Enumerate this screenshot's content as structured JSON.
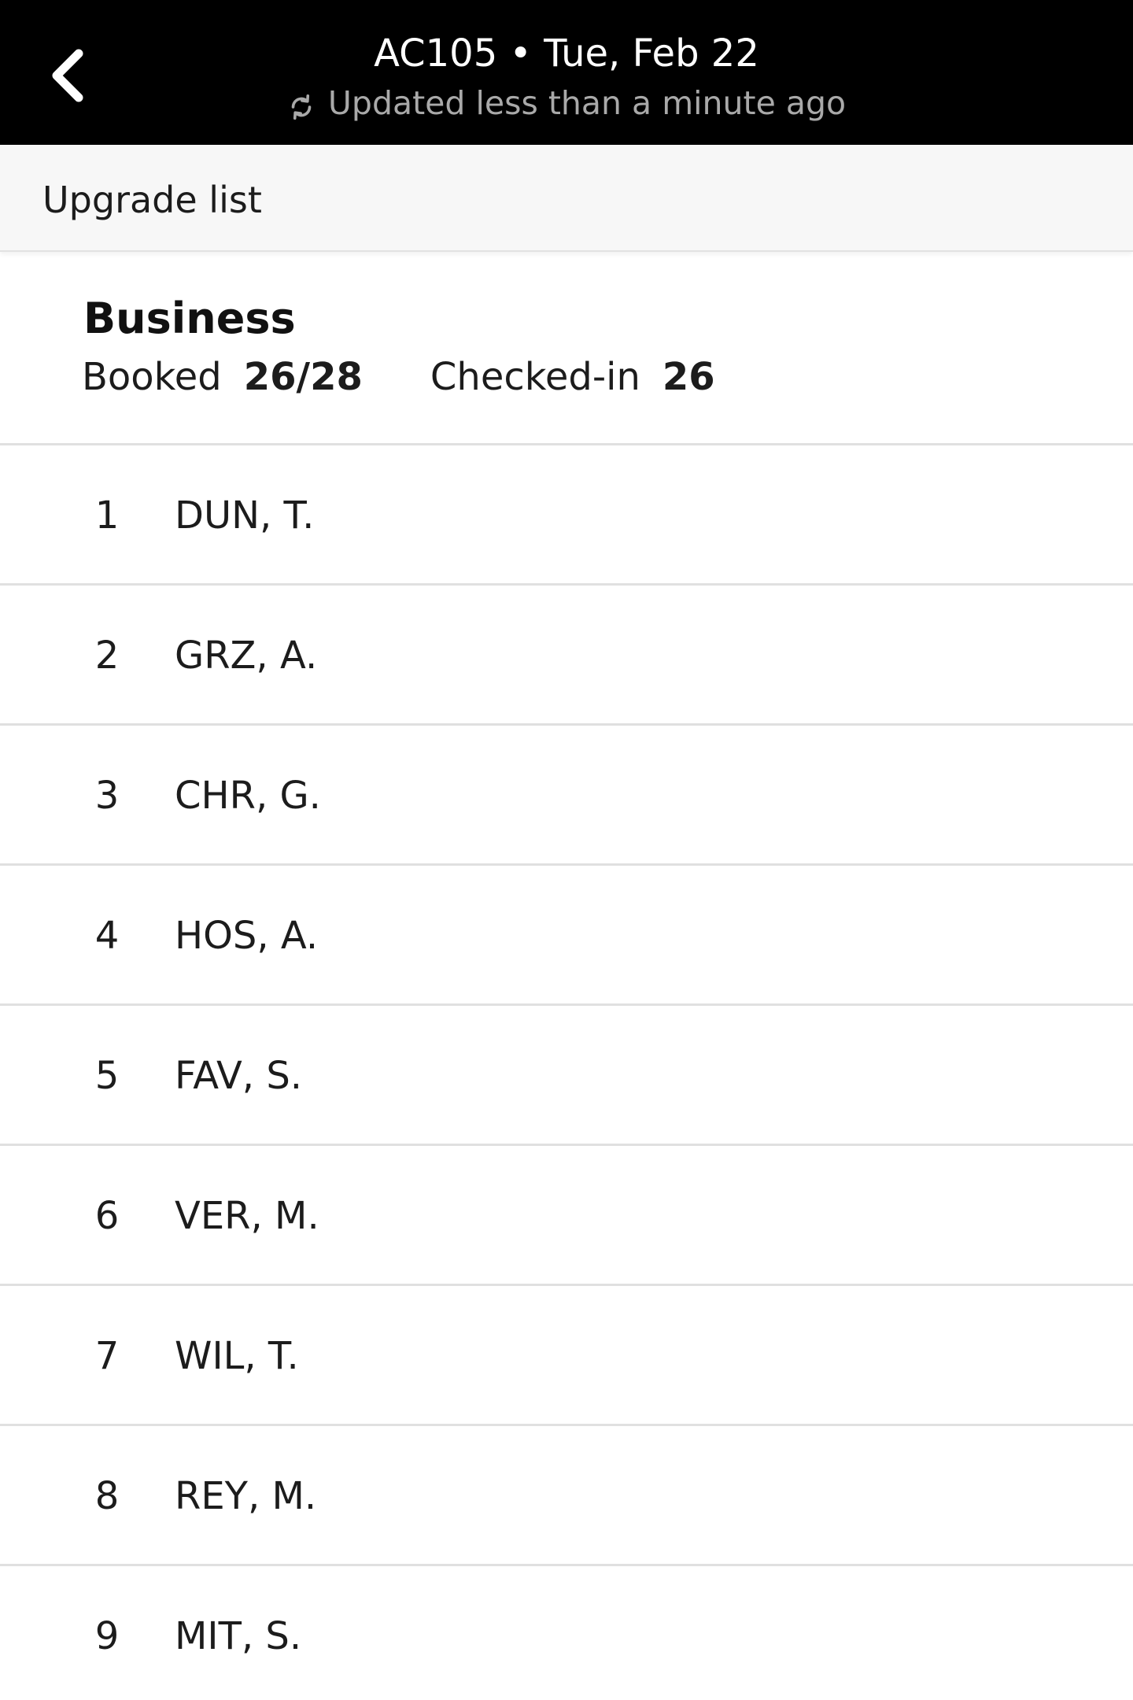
{
  "header": {
    "back_icon": "chevron-left-icon",
    "title": "AC105 • Tue, Feb 22",
    "refresh_icon": "refresh-icon",
    "updated_text": "Updated less than a minute ago"
  },
  "section": {
    "title": "Upgrade list"
  },
  "cabin": {
    "name": "Business",
    "booked_label": "Booked",
    "booked_value": "26/28",
    "checked_in_label": "Checked-in",
    "checked_in_value": "26"
  },
  "passengers": [
    {
      "rank": "1",
      "name": "DUN, T."
    },
    {
      "rank": "2",
      "name": "GRZ, A."
    },
    {
      "rank": "3",
      "name": "CHR, G."
    },
    {
      "rank": "4",
      "name": "HOS, A."
    },
    {
      "rank": "5",
      "name": "FAV, S."
    },
    {
      "rank": "6",
      "name": "VER, M."
    },
    {
      "rank": "7",
      "name": "WIL, T."
    },
    {
      "rank": "8",
      "name": "REY, M."
    },
    {
      "rank": "9",
      "name": "MIT, S."
    }
  ]
}
